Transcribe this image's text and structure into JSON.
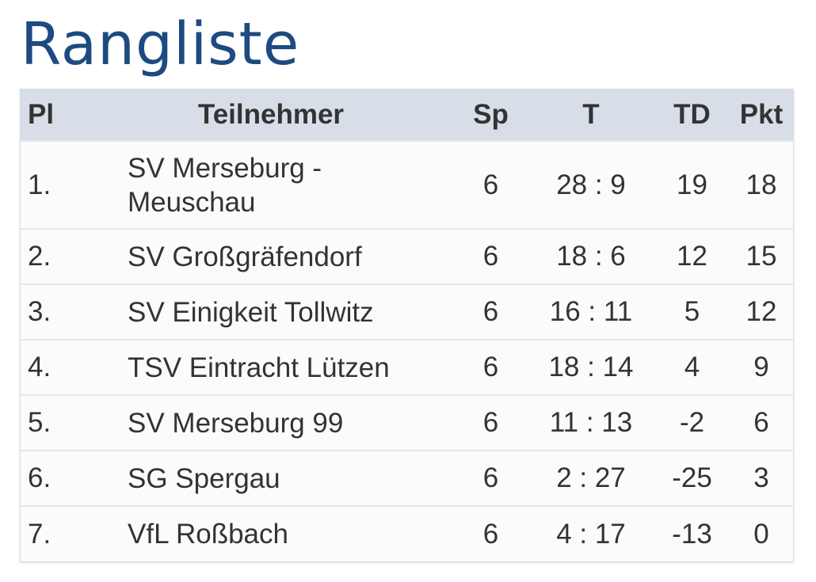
{
  "title": "Rangliste",
  "table": {
    "headers": {
      "pl": "Pl",
      "tn": "Teilnehmer",
      "sp": "Sp",
      "t": "T",
      "td": "TD",
      "pkt": "Pkt"
    },
    "rows": [
      {
        "pl": "1.",
        "tn": "SV Merseburg - Meuschau",
        "sp": "6",
        "t": "28 : 9",
        "td": "19",
        "pkt": "18"
      },
      {
        "pl": "2.",
        "tn": "SV Großgräfendorf",
        "sp": "6",
        "t": "18 : 6",
        "td": "12",
        "pkt": "15"
      },
      {
        "pl": "3.",
        "tn": "SV Einigkeit Tollwitz",
        "sp": "6",
        "t": "16 : 11",
        "td": "5",
        "pkt": "12"
      },
      {
        "pl": "4.",
        "tn": "TSV Eintracht Lützen",
        "sp": "6",
        "t": "18 : 14",
        "td": "4",
        "pkt": "9"
      },
      {
        "pl": "5.",
        "tn": "SV Merseburg 99",
        "sp": "6",
        "t": "11 : 13",
        "td": "-2",
        "pkt": "6"
      },
      {
        "pl": "6.",
        "tn": "SG Spergau",
        "sp": "6",
        "t": "2 : 27",
        "td": "-25",
        "pkt": "3"
      },
      {
        "pl": "7.",
        "tn": "VfL Roßbach",
        "sp": "6",
        "t": "4 : 17",
        "td": "-13",
        "pkt": "0"
      }
    ]
  }
}
